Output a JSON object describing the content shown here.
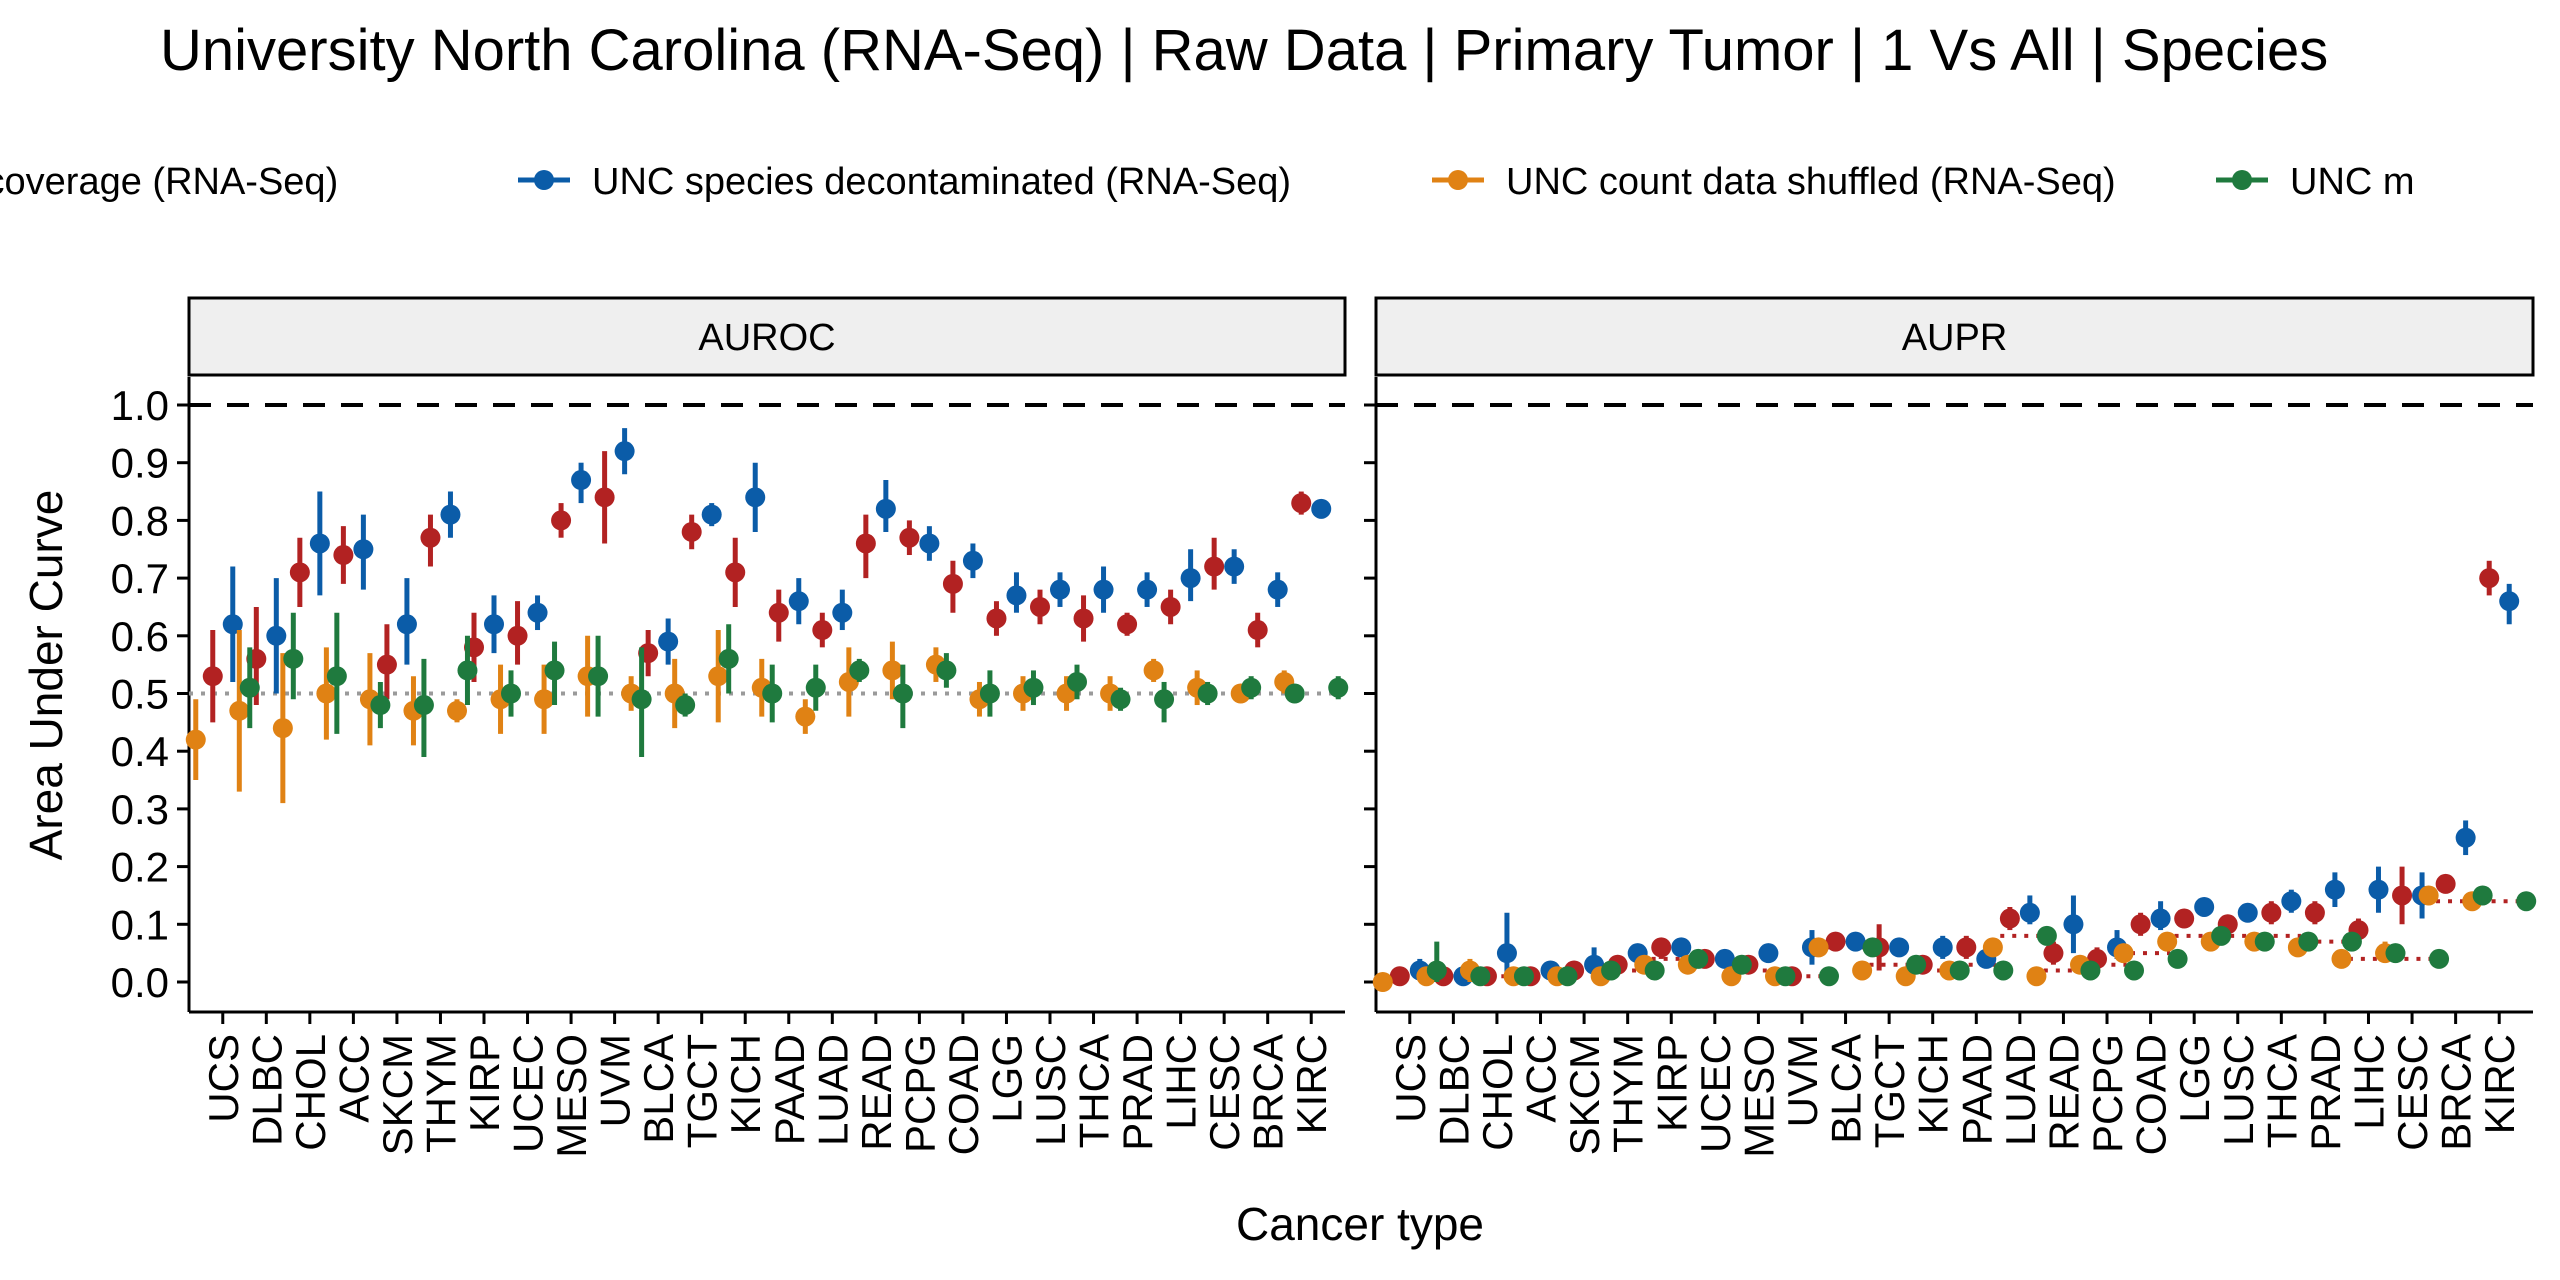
{
  "chart_data": {
    "type": "scatter",
    "title": "University North Carolina (RNA-Seq) | Raw Data | Primary Tumor | 1 Vs All | Species",
    "xlabel": "Cancer type",
    "ylabel": "Area Under Curve",
    "ylim": [
      0,
      1
    ],
    "yticks": [
      "0.0",
      "0.1",
      "0.2",
      "0.3",
      "0.4",
      "0.5",
      "0.6",
      "0.7",
      "0.8",
      "0.9",
      "1.0"
    ],
    "legend_position": "top",
    "reference_line": 1.0,
    "categories": [
      "UCS",
      "DLBC",
      "CHOL",
      "ACC",
      "SKCM",
      "THYM",
      "KIRP",
      "UCEC",
      "MESO",
      "UVM",
      "BLCA",
      "TGCT",
      "KICH",
      "PAAD",
      "LUAD",
      "READ",
      "PCPG",
      "COAD",
      "LGG",
      "LUSC",
      "THCA",
      "PRAD",
      "LIHC",
      "CESC",
      "BRCA",
      "KIRC"
    ],
    "series_legend": [
      {
        "name": "cies high coverage (RNA-Seq)",
        "color": "#b22222"
      },
      {
        "name": "UNC species decontaminated (RNA-Seq)",
        "color": "#0b5ca8"
      },
      {
        "name": "UNC count data shuffled (RNA-Seq)",
        "color": "#e08214"
      },
      {
        "name": "UNC m",
        "color": "#1f7a3e"
      }
    ],
    "panels": [
      {
        "label": "AUROC",
        "null_line": 0.5,
        "series": [
          {
            "values": [
              0.53,
              0.56,
              0.71,
              0.74,
              0.55,
              0.77,
              0.58,
              0.6,
              0.8,
              0.84,
              0.57,
              0.78,
              0.71,
              0.64,
              0.61,
              0.76,
              0.77,
              0.69,
              0.63,
              0.65,
              0.63,
              0.62,
              0.65,
              0.72,
              0.61,
              0.83
            ],
            "lower": [
              0.45,
              0.48,
              0.65,
              0.69,
              0.49,
              0.72,
              0.52,
              0.55,
              0.77,
              0.76,
              0.53,
              0.75,
              0.65,
              0.59,
              0.58,
              0.7,
              0.74,
              0.64,
              0.6,
              0.62,
              0.59,
              0.6,
              0.62,
              0.68,
              0.58,
              0.81
            ],
            "upper": [
              0.61,
              0.65,
              0.77,
              0.79,
              0.62,
              0.81,
              0.64,
              0.66,
              0.83,
              0.92,
              0.61,
              0.81,
              0.77,
              0.68,
              0.64,
              0.81,
              0.8,
              0.73,
              0.66,
              0.68,
              0.67,
              0.64,
              0.68,
              0.77,
              0.64,
              0.85
            ]
          },
          {
            "values": [
              0.62,
              0.6,
              0.76,
              0.75,
              0.62,
              0.81,
              0.62,
              0.64,
              0.87,
              0.92,
              0.59,
              0.81,
              0.84,
              0.66,
              0.64,
              0.82,
              0.76,
              0.73,
              0.67,
              0.68,
              0.68,
              0.68,
              0.7,
              0.72,
              0.68,
              0.82
            ],
            "lower": [
              0.52,
              0.5,
              0.67,
              0.68,
              0.55,
              0.77,
              0.57,
              0.61,
              0.83,
              0.88,
              0.55,
              0.79,
              0.78,
              0.62,
              0.61,
              0.78,
              0.73,
              0.7,
              0.64,
              0.65,
              0.64,
              0.65,
              0.66,
              0.69,
              0.65,
              0.81
            ],
            "upper": [
              0.72,
              0.7,
              0.85,
              0.81,
              0.7,
              0.85,
              0.67,
              0.67,
              0.9,
              0.96,
              0.63,
              0.83,
              0.9,
              0.7,
              0.68,
              0.87,
              0.79,
              0.76,
              0.71,
              0.71,
              0.72,
              0.71,
              0.75,
              0.75,
              0.71,
              0.83
            ]
          },
          {
            "values": [
              0.42,
              0.47,
              0.44,
              0.5,
              0.49,
              0.47,
              0.47,
              0.49,
              0.49,
              0.53,
              0.5,
              0.5,
              0.53,
              0.51,
              0.46,
              0.52,
              0.54,
              0.55,
              0.49,
              0.5,
              0.5,
              0.5,
              0.54,
              0.51,
              0.5,
              0.52
            ],
            "lower": [
              0.35,
              0.33,
              0.31,
              0.42,
              0.41,
              0.41,
              0.45,
              0.43,
              0.43,
              0.46,
              0.47,
              0.44,
              0.45,
              0.46,
              0.43,
              0.46,
              0.49,
              0.52,
              0.46,
              0.47,
              0.47,
              0.47,
              0.52,
              0.48,
              0.49,
              0.5
            ],
            "upper": [
              0.49,
              0.61,
              0.57,
              0.58,
              0.57,
              0.53,
              0.49,
              0.55,
              0.55,
              0.6,
              0.53,
              0.56,
              0.61,
              0.56,
              0.49,
              0.58,
              0.59,
              0.58,
              0.52,
              0.53,
              0.53,
              0.53,
              0.56,
              0.54,
              0.51,
              0.54
            ]
          },
          {
            "values": [
              0.51,
              0.56,
              0.53,
              0.48,
              0.48,
              0.54,
              0.5,
              0.54,
              0.53,
              0.49,
              0.48,
              0.56,
              0.5,
              0.51,
              0.54,
              0.5,
              0.54,
              0.5,
              0.51,
              0.52,
              0.49,
              0.49,
              0.5,
              0.51,
              0.5,
              0.51
            ],
            "lower": [
              0.44,
              0.49,
              0.43,
              0.44,
              0.39,
              0.48,
              0.46,
              0.48,
              0.46,
              0.39,
              0.46,
              0.5,
              0.45,
              0.47,
              0.52,
              0.44,
              0.51,
              0.46,
              0.48,
              0.49,
              0.47,
              0.45,
              0.48,
              0.49,
              0.49,
              0.49
            ],
            "upper": [
              0.58,
              0.64,
              0.64,
              0.52,
              0.56,
              0.6,
              0.54,
              0.59,
              0.6,
              0.58,
              0.5,
              0.62,
              0.55,
              0.55,
              0.56,
              0.55,
              0.57,
              0.54,
              0.54,
              0.55,
              0.51,
              0.52,
              0.52,
              0.53,
              0.51,
              0.53
            ]
          }
        ]
      },
      {
        "label": "AUPR",
        "null_line_by_category": [
          0.01,
          0.01,
          0.01,
          0.02,
          0.02,
          0.02,
          0.04,
          0.03,
          0.02,
          0.01,
          0.06,
          0.03,
          0.02,
          0.03,
          0.08,
          0.02,
          0.03,
          0.05,
          0.08,
          0.08,
          0.08,
          0.07,
          0.04,
          0.04,
          0.14,
          0.14
        ],
        "series": [
          {
            "values": [
              0.01,
              0.01,
              0.01,
              0.01,
              0.02,
              0.03,
              0.06,
              0.04,
              0.03,
              0.01,
              0.07,
              0.06,
              0.03,
              0.06,
              0.11,
              0.05,
              0.04,
              0.1,
              0.11,
              0.1,
              0.12,
              0.12,
              0.09,
              0.15,
              0.17,
              0.7
            ],
            "lower": [
              0.0,
              0.0,
              0.0,
              0.0,
              0.01,
              0.02,
              0.04,
              0.03,
              0.02,
              0.0,
              0.06,
              0.02,
              0.02,
              0.04,
              0.09,
              0.03,
              0.02,
              0.08,
              0.1,
              0.09,
              0.1,
              0.1,
              0.07,
              0.1,
              0.16,
              0.67
            ],
            "upper": [
              0.02,
              0.02,
              0.02,
              0.02,
              0.03,
              0.04,
              0.07,
              0.05,
              0.04,
              0.02,
              0.08,
              0.1,
              0.04,
              0.08,
              0.13,
              0.07,
              0.06,
              0.12,
              0.12,
              0.11,
              0.14,
              0.14,
              0.11,
              0.2,
              0.18,
              0.73
            ]
          },
          {
            "values": [
              0.02,
              0.01,
              0.05,
              0.02,
              0.03,
              0.05,
              0.06,
              0.04,
              0.05,
              0.06,
              0.07,
              0.06,
              0.06,
              0.04,
              0.12,
              0.1,
              0.06,
              0.11,
              0.13,
              0.12,
              0.14,
              0.16,
              0.16,
              0.15,
              0.25,
              0.66
            ],
            "lower": [
              0.01,
              0.0,
              0.01,
              0.01,
              0.01,
              0.04,
              0.05,
              0.03,
              0.04,
              0.03,
              0.06,
              0.05,
              0.04,
              0.03,
              0.1,
              0.05,
              0.04,
              0.09,
              0.12,
              0.11,
              0.12,
              0.13,
              0.12,
              0.11,
              0.22,
              0.62
            ],
            "upper": [
              0.04,
              0.02,
              0.12,
              0.03,
              0.06,
              0.06,
              0.07,
              0.05,
              0.06,
              0.09,
              0.08,
              0.07,
              0.08,
              0.05,
              0.15,
              0.15,
              0.09,
              0.14,
              0.14,
              0.13,
              0.16,
              0.19,
              0.2,
              0.19,
              0.28,
              0.69
            ]
          },
          {
            "values": [
              0.0,
              0.01,
              0.02,
              0.01,
              0.01,
              0.01,
              0.03,
              0.03,
              0.01,
              0.01,
              0.06,
              0.02,
              0.01,
              0.02,
              0.06,
              0.01,
              0.03,
              0.05,
              0.07,
              0.07,
              0.07,
              0.06,
              0.04,
              0.05,
              0.15,
              0.14
            ],
            "lower": [
              0.0,
              0.0,
              0.0,
              0.0,
              0.0,
              0.0,
              0.02,
              0.02,
              0.0,
              0.0,
              0.05,
              0.01,
              0.0,
              0.01,
              0.05,
              0.0,
              0.02,
              0.04,
              0.06,
              0.06,
              0.06,
              0.05,
              0.03,
              0.04,
              0.14,
              0.13
            ],
            "upper": [
              0.01,
              0.02,
              0.04,
              0.02,
              0.02,
              0.02,
              0.04,
              0.04,
              0.02,
              0.02,
              0.07,
              0.03,
              0.02,
              0.03,
              0.07,
              0.02,
              0.04,
              0.06,
              0.08,
              0.08,
              0.08,
              0.07,
              0.05,
              0.07,
              0.16,
              0.15
            ]
          },
          {
            "values": [
              0.02,
              0.01,
              0.01,
              0.01,
              0.02,
              0.02,
              0.04,
              0.03,
              0.01,
              0.01,
              0.06,
              0.03,
              0.02,
              0.02,
              0.08,
              0.02,
              0.02,
              0.04,
              0.08,
              0.07,
              0.07,
              0.07,
              0.05,
              0.04,
              0.15,
              0.14
            ],
            "lower": [
              0.0,
              0.0,
              0.0,
              0.0,
              0.01,
              0.01,
              0.03,
              0.02,
              0.0,
              0.0,
              0.05,
              0.02,
              0.01,
              0.01,
              0.07,
              0.01,
              0.01,
              0.03,
              0.07,
              0.06,
              0.06,
              0.06,
              0.04,
              0.03,
              0.14,
              0.13
            ],
            "upper": [
              0.07,
              0.02,
              0.02,
              0.02,
              0.03,
              0.03,
              0.05,
              0.04,
              0.02,
              0.02,
              0.07,
              0.04,
              0.03,
              0.03,
              0.09,
              0.03,
              0.03,
              0.05,
              0.09,
              0.08,
              0.08,
              0.08,
              0.06,
              0.05,
              0.16,
              0.15
            ]
          }
        ]
      }
    ]
  }
}
